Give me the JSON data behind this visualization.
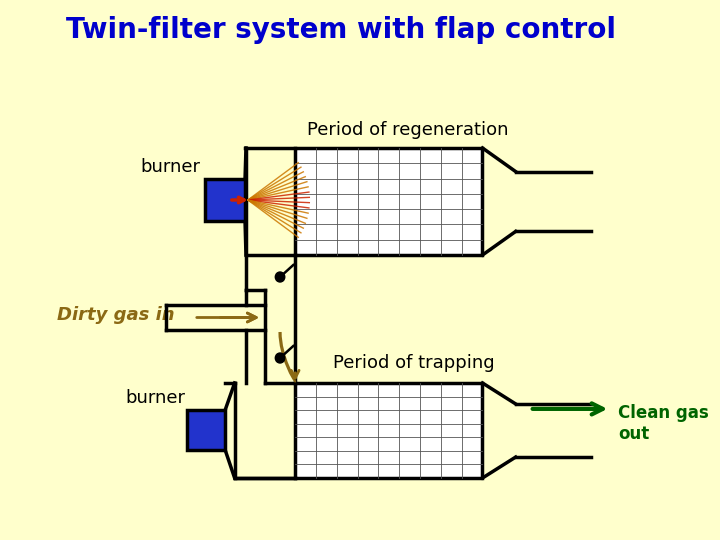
{
  "title": "Twin-filter system with flap control",
  "title_color": "#0000CC",
  "title_fontsize": 20,
  "bg_color": "#FFFFCC",
  "label_burner1": "burner",
  "label_burner2": "burner",
  "label_regen": "Period of regeneration",
  "label_trap": "Period of trapping",
  "label_dirty": "Dirty gas in",
  "label_clean": "Clean gas\nout",
  "label_dirty_color": "#8B6914",
  "label_clean_color": "#006400",
  "burner_color": "#2233CC",
  "filter_grid_color": "#555555",
  "flame_color_tip": "#CC2200",
  "flame_color_lines": "#CC7700"
}
